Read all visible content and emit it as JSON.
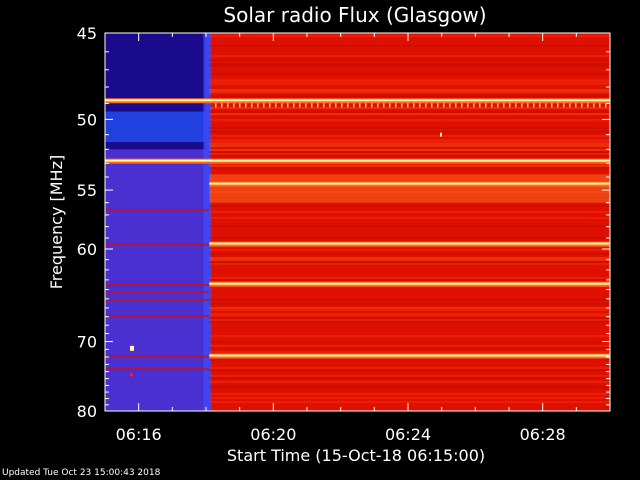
{
  "chart_data": {
    "type": "heatmap",
    "title": "Solar radio Flux (Glasgow)",
    "xlabel": "Start Time (15-Oct-18 06:15:00)",
    "ylabel": "Frequency [MHz]",
    "x_ticks": [
      "06:16",
      "06:20",
      "06:24",
      "06:28"
    ],
    "x_tick_minutes": [
      1,
      5,
      9,
      13
    ],
    "xlim_minutes": [
      0,
      15
    ],
    "y_ticks": [
      45,
      50,
      55,
      60,
      70,
      80
    ],
    "ylim": [
      45,
      80
    ],
    "y_scale": "reciprocal",
    "quiet_period_minutes": [
      0,
      3.1
    ],
    "active_period_minutes": [
      3.1,
      15
    ],
    "bright_bands_mhz": [
      48.8,
      52.8,
      54.5,
      59.5,
      63.4,
      71.8
    ],
    "colors": {
      "background": "#000000",
      "low": "#1a0a8c",
      "quiet": "#4a30d0",
      "mid": "#e01000",
      "high": "#ff6a20",
      "peak": "#fff8a0"
    }
  },
  "footer": {
    "updated": "Updated Tue Oct 23 15:00:43 2018"
  }
}
